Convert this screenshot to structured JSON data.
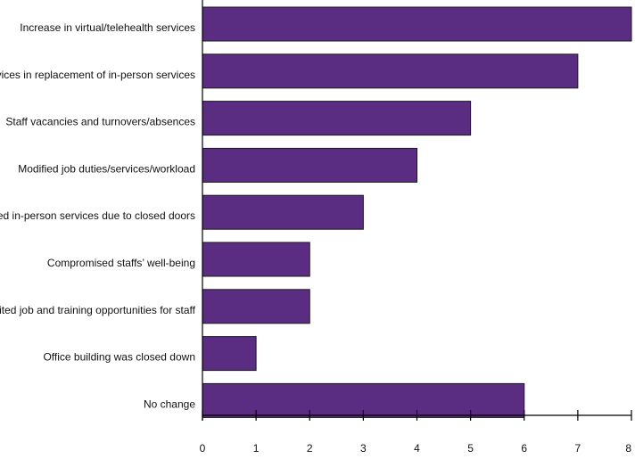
{
  "chart_data": {
    "type": "bar",
    "orientation": "horizontal",
    "categories": [
      "Increase in virtual/telehealth services",
      "Virtual services in replacement of in-person services",
      "Staff vacancies and turnovers/absences",
      "Modified job duties/services/workload",
      "Limited in-person services due to closed doors",
      "Compromised staffs’ well-being",
      "Limited job and training opportunities for staff",
      "Office building was closed down",
      "No change"
    ],
    "values": [
      8,
      7,
      5,
      4,
      3,
      2,
      2,
      1,
      6
    ],
    "xlim": [
      0,
      8
    ],
    "xticks": [
      0,
      1,
      2,
      3,
      4,
      5,
      6,
      7,
      8
    ],
    "title": "",
    "xlabel": "",
    "ylabel": "",
    "grid": false,
    "bar_color": "#5a2d82",
    "bar_edge_color": "#1a1a1a"
  }
}
